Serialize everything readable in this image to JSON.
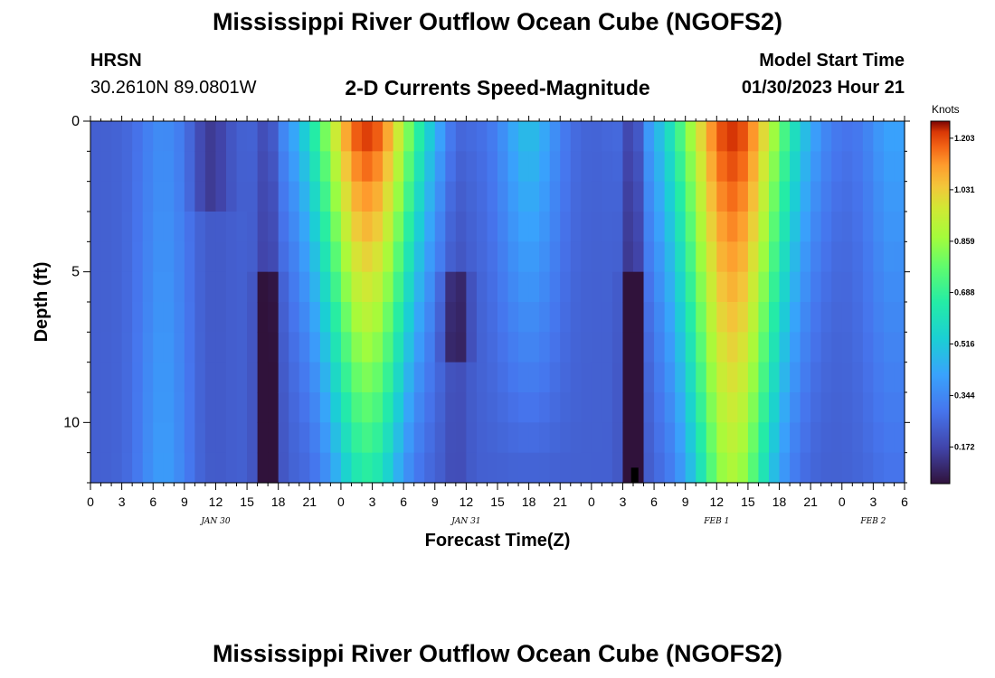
{
  "header": {
    "title": "Mississippi River Outflow Ocean Cube (NGOFS2)",
    "station_name": "HRSN",
    "station_coords": "30.2610N  89.0801W",
    "plot_title": "2-D Currents Speed-Magnitude",
    "start_label": "Model Start Time",
    "start_value": "01/30/2023 Hour 21"
  },
  "footer": {
    "title": "Mississippi River Outflow Ocean Cube (NGOFS2)"
  },
  "chart_data": {
    "type": "heatmap",
    "title": "2-D Currents Speed-Magnitude",
    "xlabel": "Forecast Time(Z)",
    "ylabel": "Depth (ft)",
    "x_start_hour": 0,
    "x_end_hour": 78,
    "x_tick_step_hours": 3,
    "x_tick_labels": [
      "0",
      "3",
      "6",
      "9",
      "12",
      "15",
      "18",
      "21",
      "0",
      "3",
      "6",
      "9",
      "12",
      "15",
      "18",
      "21",
      "0",
      "3",
      "6",
      "9",
      "12",
      "15",
      "18",
      "21",
      "0",
      "3",
      "6"
    ],
    "date_labels": [
      {
        "text": "JAN 30",
        "hour": 12
      },
      {
        "text": "JAN 31",
        "hour": 36
      },
      {
        "text": "FEB 1",
        "hour": 60
      },
      {
        "text": "FEB 2",
        "hour": 75
      }
    ],
    "ylim": [
      0,
      12
    ],
    "y_major_ticks": [
      0,
      5,
      10
    ],
    "y_tick_labels": [
      "0",
      "5",
      "10"
    ],
    "depth_levels_ft": [
      0,
      1,
      2,
      3,
      4,
      5,
      6,
      7,
      8,
      9,
      10,
      11,
      12
    ],
    "colorbar": {
      "unit": "Knots",
      "min": 0.05,
      "max": 1.26,
      "tick_values": [
        1.203,
        1.031,
        0.859,
        0.688,
        0.516,
        0.344,
        0.172
      ],
      "tick_labels": [
        "1.203",
        "1.031",
        "0.859",
        "0.688",
        "0.516",
        "0.344",
        "0.172"
      ]
    },
    "grid": false,
    "legend": "colorbar-right"
  }
}
